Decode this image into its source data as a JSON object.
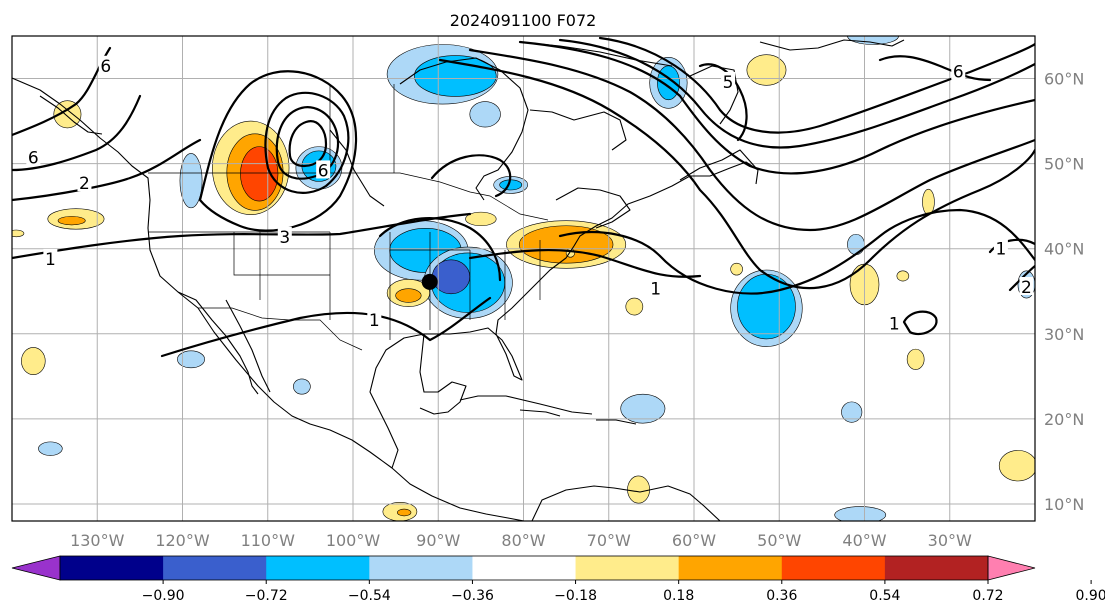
{
  "title": "2024091100 F072",
  "map": {
    "lon_min": -140,
    "lon_max": -20,
    "lat_min": 8,
    "lat_max": 65,
    "lon_ticks": [
      {
        "value": -130,
        "label": "130°W"
      },
      {
        "value": -120,
        "label": "120°W"
      },
      {
        "value": -110,
        "label": "110°W"
      },
      {
        "value": -100,
        "label": "100°W"
      },
      {
        "value": -90,
        "label": "90°W"
      },
      {
        "value": -80,
        "label": "80°W"
      },
      {
        "value": -70,
        "label": "70°W"
      },
      {
        "value": -60,
        "label": "60°W"
      },
      {
        "value": -50,
        "label": "50°W"
      },
      {
        "value": -40,
        "label": "40°W"
      },
      {
        "value": -30,
        "label": "30°W"
      }
    ],
    "lat_ticks": [
      {
        "value": 10,
        "label": "10°N"
      },
      {
        "value": 20,
        "label": "20°N"
      },
      {
        "value": 30,
        "label": "30°N"
      },
      {
        "value": 40,
        "label": "40°N"
      },
      {
        "value": 50,
        "label": "50°N"
      },
      {
        "value": 60,
        "label": "60°N"
      }
    ],
    "marker": {
      "lon": -91,
      "lat": 36.1,
      "color": "#000000"
    }
  },
  "colorbar": {
    "levels": [
      "−0.90",
      "−0.72",
      "−0.54",
      "−0.36",
      "−0.18",
      "0.18",
      "0.36",
      "0.54",
      "0.72",
      "0.90"
    ],
    "colors": [
      "#9932cc",
      "#00008b",
      "#3a5fcd",
      "#00bfff",
      "#add8f7",
      "#ffffff",
      "#ffec8b",
      "#ffa500",
      "#ff4500",
      "#b22222",
      "#ff7fb0"
    ]
  },
  "contour_labels": [
    {
      "text": "1",
      "lon": -135.5,
      "lat": 38.8
    },
    {
      "text": "2",
      "lon": -131.5,
      "lat": 47.7
    },
    {
      "text": "3",
      "lon": -108,
      "lat": 41.4
    },
    {
      "text": "1",
      "lon": -97.5,
      "lat": 31.6
    },
    {
      "text": "1",
      "lon": -64.5,
      "lat": 35.3
    },
    {
      "text": "1",
      "lon": -36.5,
      "lat": 31.2
    },
    {
      "text": "1",
      "lon": -24,
      "lat": 40
    },
    {
      "text": "2",
      "lon": -21,
      "lat": 35.5
    },
    {
      "text": "6",
      "lon": -137.5,
      "lat": 50.7
    },
    {
      "text": "6",
      "lon": -129,
      "lat": 61.5
    },
    {
      "text": "6",
      "lon": -103.5,
      "lat": 49.2
    },
    {
      "text": "6",
      "lon": -29,
      "lat": 60.8
    },
    {
      "text": "5",
      "lon": -56,
      "lat": 59.6
    }
  ],
  "anomaly_regions": [
    {
      "color": "#ffec8b",
      "lon": -112,
      "lat": 49.5,
      "rx": 4.5,
      "ry": 5.5
    },
    {
      "color": "#ffa500",
      "lon": -111.5,
      "lat": 49,
      "rx": 3.3,
      "ry": 4.5
    },
    {
      "color": "#ff4500",
      "lon": -111,
      "lat": 48.8,
      "rx": 2.2,
      "ry": 3.2
    },
    {
      "color": "#add8f7",
      "lon": -104,
      "lat": 49.5,
      "rx": 2.7,
      "ry": 2.5
    },
    {
      "color": "#00bfff",
      "lon": -104,
      "lat": 49.7,
      "rx": 2,
      "ry": 1.8
    },
    {
      "color": "#add8f7",
      "lon": -119,
      "lat": 48,
      "rx": 1.3,
      "ry": 3.2
    },
    {
      "color": "#ffec8b",
      "lon": -133.5,
      "lat": 55.8,
      "rx": 1.6,
      "ry": 1.6
    },
    {
      "color": "#ffec8b",
      "lon": -132.5,
      "lat": 43.5,
      "rx": 3.3,
      "ry": 1.2
    },
    {
      "color": "#ffa500",
      "lon": -133,
      "lat": 43.3,
      "rx": 1.6,
      "ry": 0.5
    },
    {
      "color": "#ffec8b",
      "lon": -139.5,
      "lat": 41.8,
      "rx": 0.9,
      "ry": 0.4
    },
    {
      "color": "#add8f7",
      "lon": -89.5,
      "lat": 60.5,
      "rx": 6.5,
      "ry": 3.5
    },
    {
      "color": "#00bfff",
      "lon": -88,
      "lat": 60.3,
      "rx": 4.8,
      "ry": 2.4
    },
    {
      "color": "#add8f7",
      "lon": -84.5,
      "lat": 55.8,
      "rx": 1.8,
      "ry": 1.5
    },
    {
      "color": "#add8f7",
      "lon": -63,
      "lat": 59.5,
      "rx": 2.2,
      "ry": 3
    },
    {
      "color": "#00bfff",
      "lon": -63,
      "lat": 59.5,
      "rx": 1.3,
      "ry": 2
    },
    {
      "color": "#ffec8b",
      "lon": -51.5,
      "lat": 61,
      "rx": 2.3,
      "ry": 1.8
    },
    {
      "color": "#add8f7",
      "lon": -39,
      "lat": 65,
      "rx": 3,
      "ry": 1
    },
    {
      "color": "#add8f7",
      "lon": -92,
      "lat": 39.8,
      "rx": 5.5,
      "ry": 3.5
    },
    {
      "color": "#00bfff",
      "lon": -91.5,
      "lat": 39.8,
      "rx": 4.2,
      "ry": 2.6
    },
    {
      "color": "#add8f7",
      "lon": -86.5,
      "lat": 36,
      "rx": 5.2,
      "ry": 4.2
    },
    {
      "color": "#00bfff",
      "lon": -86.5,
      "lat": 36,
      "rx": 4.3,
      "ry": 3.5
    },
    {
      "color": "#3a5fcd",
      "lon": -88.5,
      "lat": 36.7,
      "rx": 2.2,
      "ry": 2
    },
    {
      "color": "#ffec8b",
      "lon": -75,
      "lat": 40.5,
      "rx": 7,
      "ry": 2.8
    },
    {
      "color": "#ffa500",
      "lon": -75,
      "lat": 40.5,
      "rx": 5.5,
      "ry": 2.2
    },
    {
      "color": "#ffec8b",
      "lon": -85,
      "lat": 43.5,
      "rx": 1.8,
      "ry": 0.8
    },
    {
      "color": "#add8f7",
      "lon": -81.5,
      "lat": 47.5,
      "rx": 2,
      "ry": 1
    },
    {
      "color": "#00bfff",
      "lon": -81.5,
      "lat": 47.5,
      "rx": 1.3,
      "ry": 0.6
    },
    {
      "color": "#ffec8b",
      "lon": -93.5,
      "lat": 34.8,
      "rx": 2.5,
      "ry": 1.6
    },
    {
      "color": "#ffa500",
      "lon": -93.5,
      "lat": 34.5,
      "rx": 1.5,
      "ry": 0.8
    },
    {
      "color": "#add8f7",
      "lon": -51.5,
      "lat": 33,
      "rx": 4.2,
      "ry": 4.5
    },
    {
      "color": "#00bfff",
      "lon": -51.5,
      "lat": 33.2,
      "rx": 3.4,
      "ry": 3.8
    },
    {
      "color": "#ffec8b",
      "lon": -67,
      "lat": 33.2,
      "rx": 1,
      "ry": 1
    },
    {
      "color": "#ffec8b",
      "lon": -74.5,
      "lat": 39.5,
      "rx": 0.5,
      "ry": 0.5
    },
    {
      "color": "#add8f7",
      "lon": -41,
      "lat": 40.5,
      "rx": 1,
      "ry": 1.2
    },
    {
      "color": "#ffec8b",
      "lon": -32.5,
      "lat": 45.5,
      "rx": 0.7,
      "ry": 1.5
    },
    {
      "color": "#ffec8b",
      "lon": -40,
      "lat": 35.8,
      "rx": 1.7,
      "ry": 2.4
    },
    {
      "color": "#add8f7",
      "lon": -21,
      "lat": 35.8,
      "rx": 1,
      "ry": 1.6
    },
    {
      "color": "#ffec8b",
      "lon": -34,
      "lat": 27,
      "rx": 1,
      "ry": 1.2
    },
    {
      "color": "#ffec8b",
      "lon": -35.5,
      "lat": 36.8,
      "rx": 0.7,
      "ry": 0.6
    },
    {
      "color": "#ffec8b",
      "lon": -55,
      "lat": 37.6,
      "rx": 0.7,
      "ry": 0.7
    },
    {
      "color": "#ffec8b",
      "lon": -137.5,
      "lat": 26.8,
      "rx": 1.4,
      "ry": 1.6
    },
    {
      "color": "#add8f7",
      "lon": -119,
      "lat": 27,
      "rx": 1.6,
      "ry": 1
    },
    {
      "color": "#add8f7",
      "lon": -106,
      "lat": 23.8,
      "rx": 1,
      "ry": 0.9
    },
    {
      "color": "#add8f7",
      "lon": -135.5,
      "lat": 16.5,
      "rx": 1.4,
      "ry": 0.8
    },
    {
      "color": "#add8f7",
      "lon": -66,
      "lat": 21.2,
      "rx": 2.6,
      "ry": 1.7
    },
    {
      "color": "#ffec8b",
      "lon": -66.5,
      "lat": 11.7,
      "rx": 1.3,
      "ry": 1.6
    },
    {
      "color": "#add8f7",
      "lon": -41.5,
      "lat": 20.8,
      "rx": 1.2,
      "ry": 1.2
    },
    {
      "color": "#ffec8b",
      "lon": -22,
      "lat": 14.5,
      "rx": 2.2,
      "ry": 1.8
    },
    {
      "color": "#ffec8b",
      "lon": -94.5,
      "lat": 9.1,
      "rx": 2,
      "ry": 1.1
    },
    {
      "color": "#ffa500",
      "lon": -94,
      "lat": 9,
      "rx": 0.8,
      "ry": 0.4
    },
    {
      "color": "#add8f7",
      "lon": -40.5,
      "lat": 8.7,
      "rx": 3,
      "ry": 1
    }
  ]
}
